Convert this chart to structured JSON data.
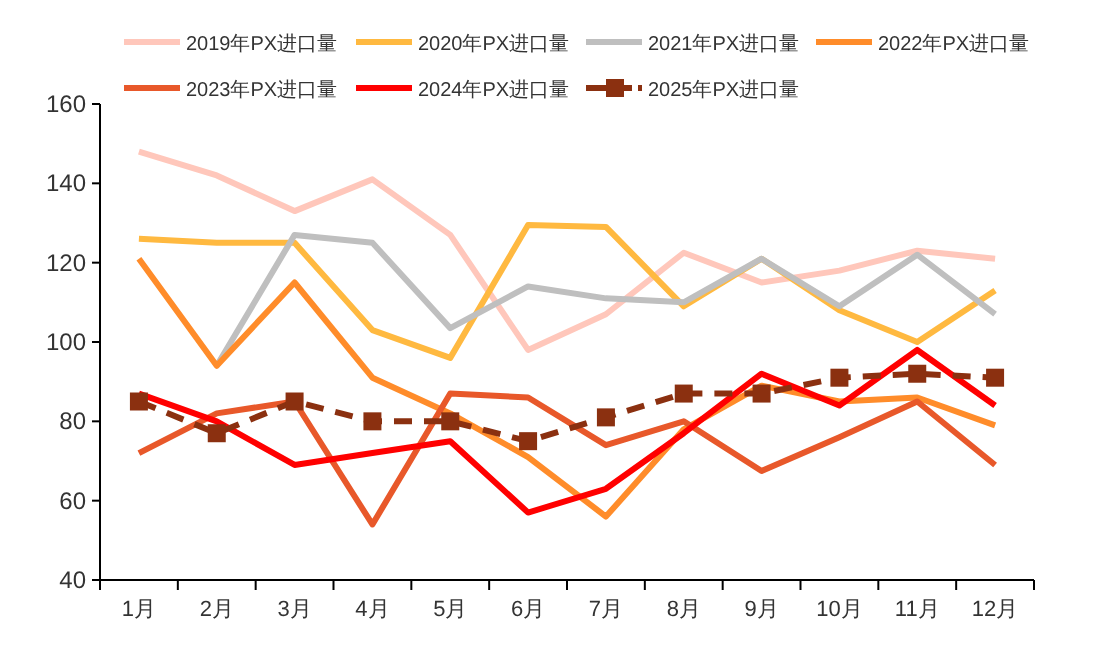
{
  "chart_data": {
    "type": "line",
    "categories": [
      "1月",
      "2月",
      "3月",
      "4月",
      "5月",
      "6月",
      "7月",
      "8月",
      "9月",
      "10月",
      "11月",
      "12月"
    ],
    "ylim": [
      40,
      160
    ],
    "yticks": [
      40,
      60,
      80,
      100,
      120,
      140,
      160
    ],
    "legend": "top",
    "grid": false,
    "series": [
      {
        "name": "2019年PX进口量",
        "color": "#ffc7bb",
        "values": [
          148,
          142,
          133,
          141,
          127,
          98,
          107,
          122.5,
          115,
          118,
          123,
          121
        ]
      },
      {
        "name": "2020年PX进口量",
        "color": "#ffb940",
        "values": [
          126,
          125,
          125,
          103,
          96,
          129.5,
          129,
          109,
          121,
          108,
          100,
          113
        ]
      },
      {
        "name": "2021年PX进口量",
        "color": "#bfbfbf",
        "values": [
          null,
          94,
          127,
          125,
          103.5,
          114,
          111,
          110,
          121,
          109,
          122,
          107
        ]
      },
      {
        "name": "2022年PX进口量",
        "color": "#ff8c2a",
        "values": [
          121,
          94,
          115,
          91,
          82,
          71,
          56,
          78,
          89,
          85,
          86,
          79
        ]
      },
      {
        "name": "2023年PX进口量",
        "color": "#e8582a",
        "values": [
          72,
          82,
          85,
          54,
          87,
          86,
          74,
          80,
          67.5,
          76,
          85,
          69
        ]
      },
      {
        "name": "2024年PX进口量",
        "color": "#ff0000",
        "values": [
          87,
          80,
          69,
          72,
          75,
          57,
          63,
          77,
          92,
          84,
          98,
          84
        ]
      },
      {
        "name": "2025年PX进口量",
        "color": "#8b3010",
        "values": [
          85,
          77,
          85,
          80,
          80,
          75,
          81,
          87,
          87,
          91,
          92,
          91
        ],
        "line_style": "dashed",
        "marker": "square"
      }
    ]
  }
}
